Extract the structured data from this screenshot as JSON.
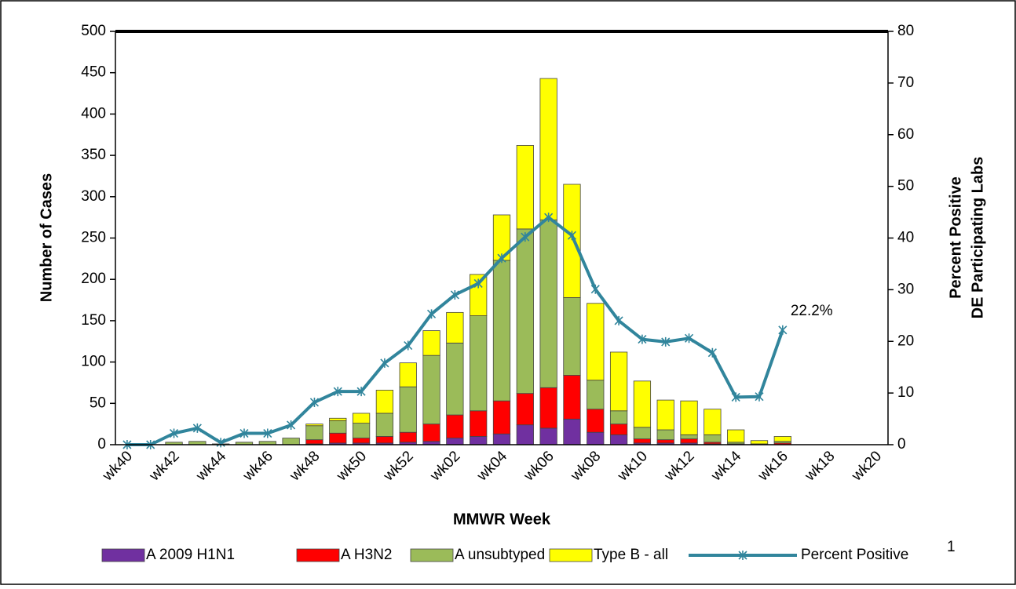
{
  "chart_data": {
    "type": "stacked-bar-line",
    "xlabel": "MMWR Week",
    "ylabel": "Number of Cases",
    "y2label": [
      "Percent Positive",
      "DE Participating Labs"
    ],
    "categories": [
      "wk40",
      null,
      "wk42",
      null,
      "wk44",
      null,
      "wk46",
      null,
      "wk48",
      null,
      "wk50",
      null,
      "wk52",
      null,
      "wk02",
      null,
      "wk04",
      null,
      "wk06",
      null,
      "wk08",
      null,
      "wk10",
      null,
      "wk12",
      null,
      "wk14",
      null,
      "wk16",
      null,
      "wk18",
      null,
      "wk20"
    ],
    "ylim": [
      0,
      500
    ],
    "yticks": [
      0,
      50,
      100,
      150,
      200,
      250,
      300,
      350,
      400,
      450,
      500
    ],
    "y2lim": [
      0,
      80
    ],
    "y2ticks": [
      0,
      10,
      20,
      30,
      40,
      50,
      60,
      70,
      80
    ],
    "legend_position": "bottom",
    "legend_footnote": "1",
    "series": [
      {
        "name": "A 2009 H1N1",
        "color": "#7030a0",
        "values": [
          0,
          0,
          0,
          0,
          0,
          0,
          0,
          0,
          1,
          2,
          2,
          2,
          3,
          4,
          8,
          10,
          13,
          24,
          20,
          31,
          15,
          12,
          2,
          2,
          2,
          1,
          0,
          0,
          0,
          0,
          0,
          0,
          0
        ]
      },
      {
        "name": "A H3N2",
        "color": "#ff0000",
        "values": [
          0,
          0,
          0,
          0,
          0,
          0,
          0,
          0,
          5,
          12,
          6,
          8,
          12,
          21,
          28,
          31,
          40,
          38,
          49,
          53,
          28,
          13,
          5,
          4,
          5,
          2,
          1,
          0,
          2,
          0,
          0,
          0,
          0
        ]
      },
      {
        "name": "A unsubtyped",
        "color": "#9bbb59",
        "values": [
          0,
          0,
          3,
          4,
          1,
          3,
          4,
          8,
          17,
          15,
          18,
          28,
          55,
          83,
          87,
          115,
          170,
          199,
          203,
          94,
          35,
          16,
          14,
          12,
          5,
          9,
          2,
          1,
          2,
          0,
          0,
          0,
          0
        ]
      },
      {
        "name": "Type B - all",
        "color": "#ffff00",
        "values": [
          0,
          0,
          0,
          0,
          0,
          0,
          0,
          0,
          2,
          3,
          12,
          28,
          29,
          30,
          37,
          50,
          55,
          101,
          171,
          137,
          93,
          71,
          56,
          36,
          41,
          31,
          15,
          4,
          6,
          0,
          0,
          0,
          0
        ]
      },
      {
        "name": "Percent Positive",
        "color": "#31859c",
        "axis": "y2",
        "values": [
          0,
          0,
          2.2,
          3.2,
          0.4,
          2.2,
          2.2,
          3.8,
          8.2,
          10.3,
          10.3,
          15.8,
          19.2,
          25.3,
          29.0,
          31.2,
          36.1,
          40.2,
          44.0,
          40.5,
          30.1,
          24.0,
          20.4,
          19.9,
          20.6,
          17.8,
          9.2,
          9.3,
          22.2,
          null,
          null,
          null,
          null
        ],
        "value_labels": [
          null,
          null,
          null,
          null,
          null,
          null,
          null,
          null,
          null,
          null,
          null,
          null,
          null,
          null,
          null,
          null,
          null,
          null,
          null,
          null,
          null,
          null,
          null,
          null,
          null,
          null,
          null,
          null,
          "22.2%",
          null,
          null,
          null,
          null
        ]
      }
    ]
  }
}
